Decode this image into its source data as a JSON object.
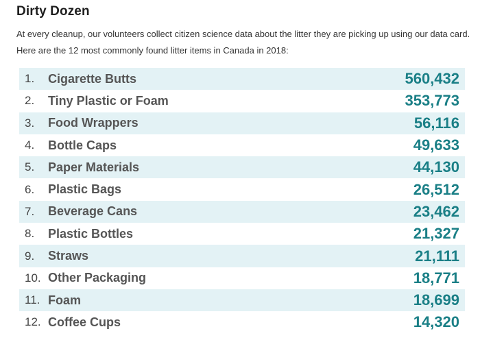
{
  "title": "Dirty Dozen",
  "intro": "At every cleanup, our volunteers collect citizen science data about the litter they are picking up using our data card. Here are the 12 most commonly found litter items in Canada in 2018:",
  "items": [
    {
      "rank": "1.",
      "name": "Cigarette Butts",
      "count": "560,432"
    },
    {
      "rank": "2.",
      "name": "Tiny Plastic or Foam",
      "count": "353,773"
    },
    {
      "rank": "3.",
      "name": "Food Wrappers",
      "count": "56,116"
    },
    {
      "rank": "4.",
      "name": "Bottle Caps",
      "count": "49,633"
    },
    {
      "rank": "5.",
      "name": "Paper Materials",
      "count": "44,130"
    },
    {
      "rank": "6.",
      "name": "Plastic Bags",
      "count": "26,512"
    },
    {
      "rank": "7.",
      "name": "Beverage Cans",
      "count": "23,462"
    },
    {
      "rank": "8.",
      "name": "Plastic Bottles",
      "count": "21,327"
    },
    {
      "rank": "9.",
      "name": "Straws",
      "count": "21,111"
    },
    {
      "rank": "10.",
      "name": "Other Packaging",
      "count": "18,771"
    },
    {
      "rank": "11.",
      "name": "Foam",
      "count": "18,699"
    },
    {
      "rank": "12.",
      "name": "Coffee Cups",
      "count": "14,320"
    }
  ],
  "colors": {
    "accent": "#1a7f86",
    "row_shade": "#e3f2f5",
    "title": "#1f1f1f"
  }
}
